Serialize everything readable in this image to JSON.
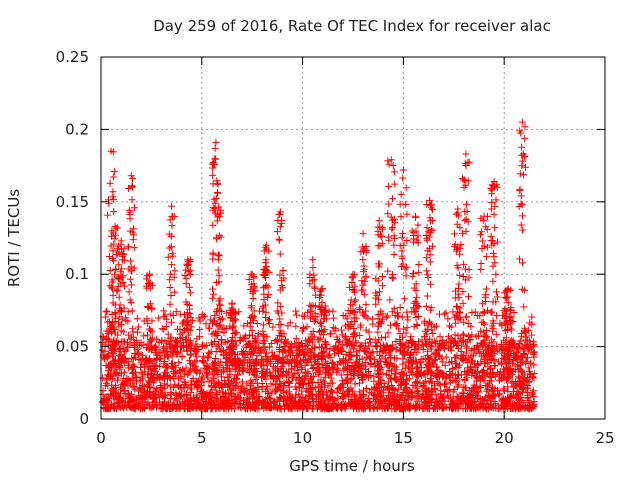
{
  "chart_data": {
    "type": "scatter",
    "title": "Day 259 of 2016, Rate Of TEC Index for receiver alac",
    "xlabel": "GPS time / hours",
    "ylabel": "ROTI / TECUs",
    "xlim": [
      0,
      25
    ],
    "ylim": [
      0,
      0.25
    ],
    "xticks": [
      0,
      5,
      10,
      15,
      20,
      25
    ],
    "xtick_labels": [
      "0",
      "5",
      "10",
      "15",
      "20",
      "25"
    ],
    "yticks": [
      0,
      0.05,
      0.1,
      0.15,
      0.2,
      0.25
    ],
    "ytick_labels": [
      "0",
      "0.05",
      "0.1",
      "0.15",
      "0.2",
      "0.25"
    ],
    "grid": true,
    "marker": "+",
    "color": "#ff0000",
    "data_extent_hours": [
      0,
      21.5
    ],
    "peaks": [
      {
        "x": 0.5,
        "y": 0.185
      },
      {
        "x": 0.7,
        "y": 0.133
      },
      {
        "x": 1.0,
        "y": 0.123
      },
      {
        "x": 1.5,
        "y": 0.168
      },
      {
        "x": 2.4,
        "y": 0.1
      },
      {
        "x": 3.5,
        "y": 0.147
      },
      {
        "x": 4.3,
        "y": 0.11
      },
      {
        "x": 5.7,
        "y": 0.191
      },
      {
        "x": 5.8,
        "y": 0.162
      },
      {
        "x": 6.5,
        "y": 0.08
      },
      {
        "x": 7.5,
        "y": 0.1
      },
      {
        "x": 8.2,
        "y": 0.12
      },
      {
        "x": 8.9,
        "y": 0.143
      },
      {
        "x": 10.5,
        "y": 0.11
      },
      {
        "x": 11.0,
        "y": 0.09
      },
      {
        "x": 12.5,
        "y": 0.1
      },
      {
        "x": 13.0,
        "y": 0.128
      },
      {
        "x": 13.8,
        "y": 0.137
      },
      {
        "x": 14.4,
        "y": 0.179
      },
      {
        "x": 15.0,
        "y": 0.172
      },
      {
        "x": 15.6,
        "y": 0.14
      },
      {
        "x": 16.3,
        "y": 0.151
      },
      {
        "x": 17.7,
        "y": 0.145
      },
      {
        "x": 18.1,
        "y": 0.183
      },
      {
        "x": 19.0,
        "y": 0.14
      },
      {
        "x": 19.5,
        "y": 0.164
      },
      {
        "x": 20.2,
        "y": 0.09
      },
      {
        "x": 20.9,
        "y": 0.205
      }
    ]
  }
}
